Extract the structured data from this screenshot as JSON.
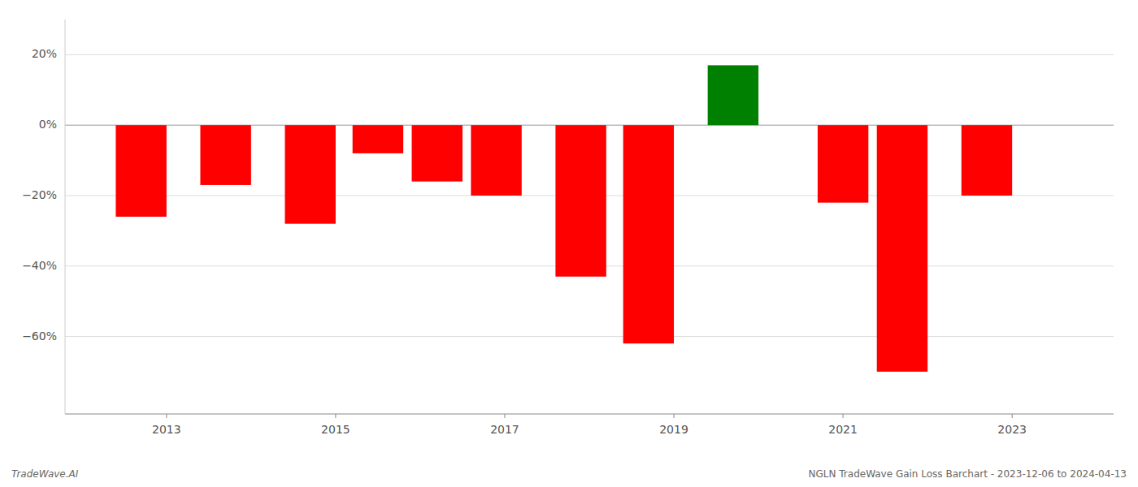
{
  "chart_data": {
    "type": "bar",
    "x": [
      2012.7,
      2013.7,
      2014.7,
      2015.5,
      2016.2,
      2016.9,
      2017.9,
      2018.7,
      2019.7,
      2021.0,
      2021.7,
      2022.7
    ],
    "values": [
      -0.26,
      -0.17,
      -0.28,
      -0.08,
      -0.16,
      -0.2,
      -0.43,
      -0.62,
      0.17,
      -0.22,
      -0.7,
      -0.2
    ],
    "colors": [
      "#ff0000",
      "#ff0000",
      "#ff0000",
      "#ff0000",
      "#ff0000",
      "#ff0000",
      "#ff0000",
      "#ff0000",
      "#008000",
      "#ff0000",
      "#ff0000",
      "#ff0000"
    ],
    "xlim": [
      2011.8,
      2024.2
    ],
    "ylim": [
      -0.82,
      0.3
    ],
    "xticks": [
      2013,
      2015,
      2017,
      2019,
      2021,
      2023
    ],
    "yticks": [
      {
        "value": 0.2,
        "label": "20%"
      },
      {
        "value": 0.0,
        "label": "0%"
      },
      {
        "value": -0.2,
        "label": "−20%"
      },
      {
        "value": -0.4,
        "label": "−40%"
      },
      {
        "value": -0.6,
        "label": "−60%"
      }
    ],
    "grid": true,
    "annotations": [
      "TradeWave.AI",
      "NGLN TradeWave Gain Loss Barchart - 2023-12-06 to 2024-04-13"
    ]
  }
}
